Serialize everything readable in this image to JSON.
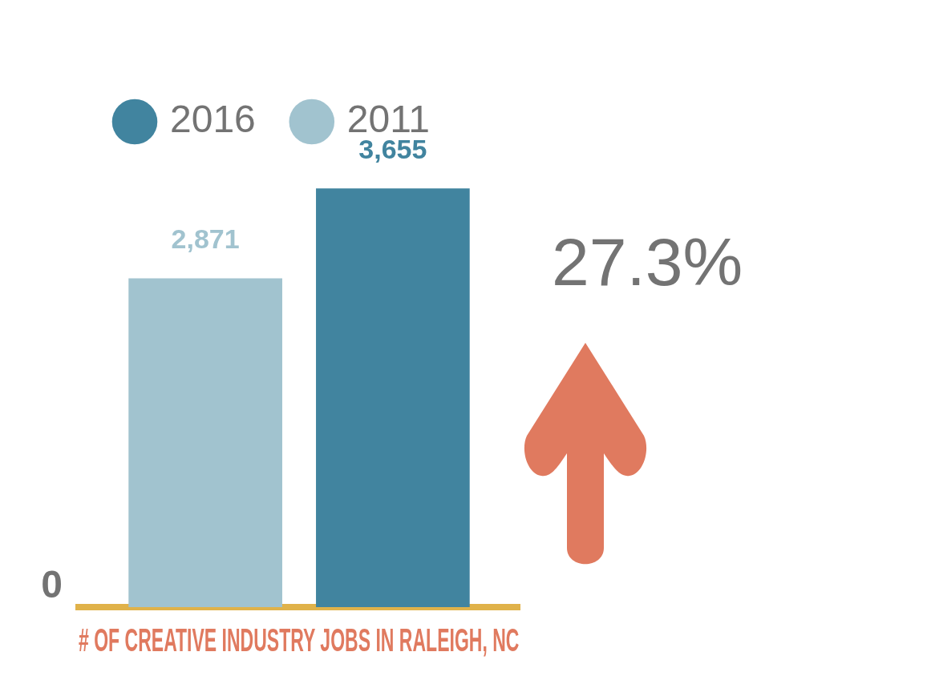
{
  "chart_data": {
    "type": "bar",
    "title": "# OF CREATIVE INDUSTRY JOBS IN RALEIGH, NC",
    "categories": [
      null
    ],
    "series": [
      {
        "name": "2011",
        "color": "#a1c3cf",
        "values": [
          2871
        ],
        "value_labels": [
          "2,871"
        ]
      },
      {
        "name": "2016",
        "color": "#41849f",
        "values": [
          3655
        ],
        "value_labels": [
          "3,655"
        ]
      }
    ],
    "grid": false,
    "legend": "top left",
    "annotations": [
      "27.3%",
      "0"
    ]
  }
}
